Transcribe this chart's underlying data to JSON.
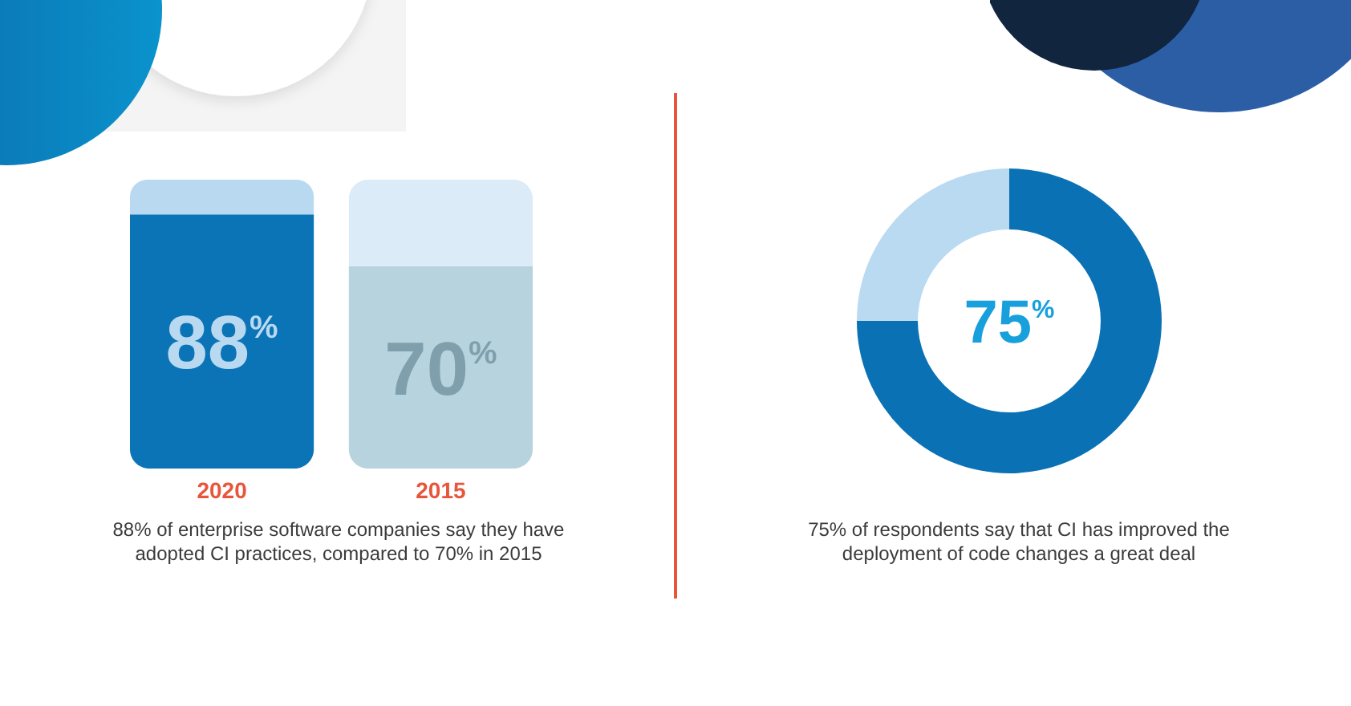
{
  "chart_data": [
    {
      "type": "bar",
      "categories": [
        "2020",
        "2015"
      ],
      "stacked": true,
      "ylim": [
        0,
        100
      ],
      "tick_labels": "x",
      "series": [
        {
          "colors": [
            "#0b74b6",
            "#b7d3dd"
          ],
          "values": [
            88,
            70
          ],
          "value_labels": [
            "88$^{%}$",
            "70$^{%}$"
          ]
        },
        {
          "colors": [
            "#b9d9f1",
            "#dbebf7"
          ],
          "values": [
            12,
            30
          ]
        }
      ],
      "annotations": [
        "88% of enterprise software companies say they have adopted CI practices, compared to 70% in 2015"
      ]
    },
    {
      "type": "donut",
      "categories": [
        null,
        null
      ],
      "values": [
        75,
        25
      ],
      "colors": [
        "#0a72b4",
        "#b9daf1"
      ],
      "value_labels": [
        "75$^{%}$",
        null
      ],
      "annotations": [
        "75% of respondents say that CI has improved the deployment of code changes a great deal"
      ]
    }
  ]
}
